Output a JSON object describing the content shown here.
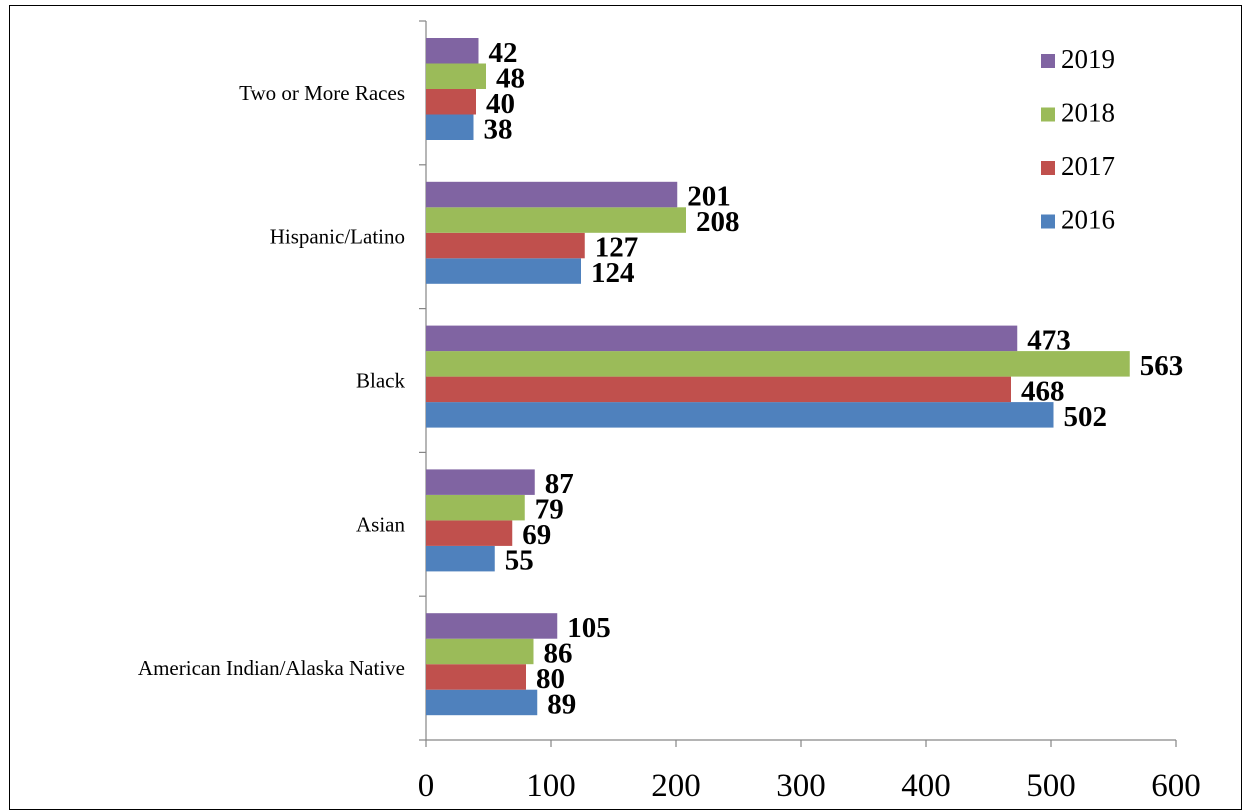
{
  "chart_data": {
    "type": "bar",
    "orientation": "horizontal",
    "categories": [
      "American Indian/Alaska Native",
      "Asian",
      "Black",
      "Hispanic/Latino",
      "Two or More Races"
    ],
    "series": [
      {
        "name": "2016",
        "color": "#4F81BD",
        "values": [
          89,
          55,
          502,
          124,
          38
        ]
      },
      {
        "name": "2017",
        "color": "#C0504D",
        "values": [
          80,
          69,
          468,
          127,
          40
        ]
      },
      {
        "name": "2018",
        "color": "#9BBB59",
        "values": [
          86,
          79,
          563,
          208,
          48
        ]
      },
      {
        "name": "2019",
        "color": "#8064A2",
        "values": [
          105,
          87,
          473,
          201,
          42
        ]
      }
    ],
    "xlim": [
      0,
      600
    ],
    "x_ticks": [
      "0",
      "100",
      "200",
      "300",
      "400",
      "500",
      "600"
    ],
    "legend": {
      "position": "top-right",
      "order": [
        "2019",
        "2018",
        "2017",
        "2016"
      ]
    },
    "grid": false,
    "data_labels": true
  }
}
